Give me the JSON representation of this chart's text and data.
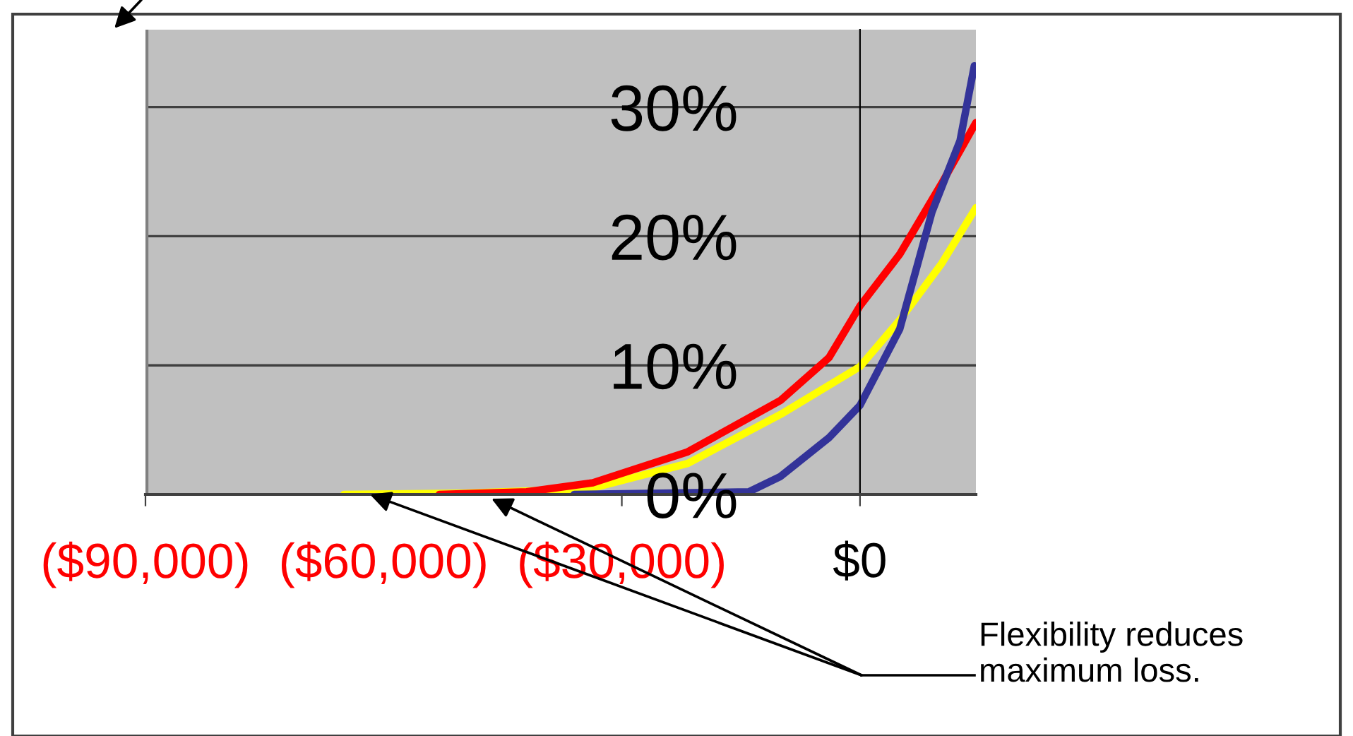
{
  "chart_data": {
    "type": "line",
    "series": [
      {
        "color": "#ffff00",
        "x": [
          -65000,
          -50000,
          -40000,
          -33650,
          -21700,
          -10000,
          0,
          5000,
          10300,
          14600
        ],
        "values": [
          0,
          0.1,
          0.3,
          0.5,
          2.4,
          6.2,
          9.9,
          13.5,
          17.9,
          22.2
        ]
      },
      {
        "color": "#ff0000",
        "x": [
          -53000,
          -42000,
          -33650,
          -21700,
          -9970,
          -3900,
          0,
          5000,
          10300,
          14600
        ],
        "values": [
          0,
          0.2,
          0.9,
          3.3,
          7.3,
          10.6,
          14.6,
          18.6,
          24.1,
          28.8
        ]
      },
      {
        "color": "#333399",
        "x": [
          -36000,
          -14000,
          -10000,
          -3900,
          0,
          5000,
          9080,
          12600,
          14400
        ],
        "values": [
          0,
          0.2,
          1.4,
          4.4,
          6.9,
          12.8,
          21.9,
          27.4,
          33.2
        ]
      }
    ],
    "xlim": [
      -90000,
      14600
    ],
    "xticks": [
      {
        "value": -90000,
        "label": "($90,000)"
      },
      {
        "value": -60000,
        "label": "($60,000)"
      },
      {
        "value": -30000,
        "label": "($30,000)"
      },
      {
        "value": 0,
        "label": "$0"
      }
    ],
    "ylim": [
      0,
      36
    ],
    "yticks": [
      {
        "value": 0,
        "label": "0%"
      },
      {
        "value": 10,
        "label": "10%"
      },
      {
        "value": 20,
        "label": "20%"
      },
      {
        "value": 30,
        "label": "30%"
      }
    ],
    "grid": "y",
    "legend": false,
    "marker": "none",
    "line_style": "solid",
    "annotations": [
      "Flexibility reduces\nmaximum loss."
    ]
  }
}
